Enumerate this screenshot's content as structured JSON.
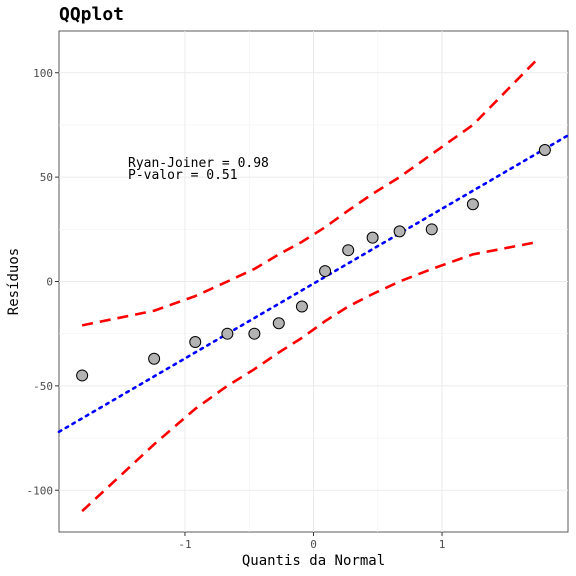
{
  "chart_data": {
    "type": "scatter",
    "title": "QQplot",
    "xlabel": "Quantis da Normal",
    "ylabel": "Resíduos",
    "xlim": [
      -1.98,
      1.98
    ],
    "ylim": [
      -120,
      120
    ],
    "x_ticks": [
      -1,
      0,
      1
    ],
    "x_tick_labels": [
      "-1",
      "0",
      "1"
    ],
    "y_ticks": [
      -100,
      -50,
      0,
      50,
      100
    ],
    "y_tick_labels": [
      "-100",
      "-50",
      "0",
      "50",
      "100"
    ],
    "grid": true,
    "annotations": [
      "Ryan-Joiner = 0.98",
      "P-valor = 0.51"
    ],
    "points": {
      "x": [
        -1.8,
        -1.24,
        -0.92,
        -0.67,
        -0.46,
        -0.27,
        -0.09,
        0.09,
        0.27,
        0.46,
        0.67,
        0.92,
        1.24,
        1.8
      ],
      "y": [
        -45,
        -37,
        -29,
        -25,
        -25,
        -20,
        -12,
        5,
        15,
        21,
        24,
        25,
        37,
        63
      ]
    },
    "reference_line": {
      "x": [
        -1.98,
        1.98
      ],
      "y": [
        -72,
        70
      ],
      "color": "#0000ff",
      "style": "dotted"
    },
    "upper_band": {
      "x": [
        -1.8,
        -1.24,
        -0.92,
        -0.67,
        -0.46,
        -0.27,
        -0.09,
        0.09,
        0.27,
        0.46,
        0.67,
        0.92,
        1.24,
        1.75
      ],
      "y": [
        -21,
        -14,
        -7,
        0,
        6,
        13,
        19,
        26,
        34,
        42,
        50,
        61,
        75,
        107
      ],
      "color": "#ff0000",
      "style": "dashed"
    },
    "lower_band": {
      "x": [
        -1.8,
        -1.24,
        -0.92,
        -0.67,
        -0.46,
        -0.27,
        -0.09,
        0.09,
        0.27,
        0.46,
        0.67,
        0.92,
        1.24,
        1.75
      ],
      "y": [
        -110,
        -78,
        -61,
        -50,
        -42,
        -34,
        -27,
        -19,
        -12,
        -6,
        0,
        6,
        13,
        19
      ],
      "color": "#ff0000",
      "style": "dashed"
    },
    "point_fill": "#b3b3b3",
    "point_stroke": "#000000"
  }
}
